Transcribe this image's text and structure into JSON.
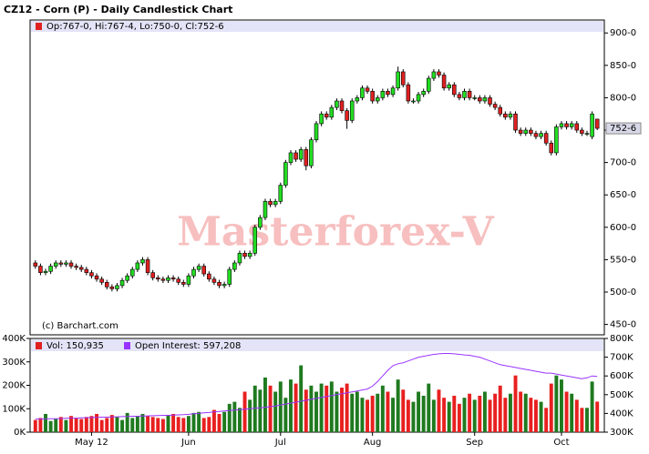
{
  "chart_data": {
    "type": "candlestick",
    "title": "CZ12 - Corn (P) - Daily Candlestick Chart",
    "ohlc_legend": "Op:767-0, Hi:767-4, Lo:750-0, Cl:752-6",
    "copyright": "(c) Barchart.com",
    "watermark": "Masterforex-V",
    "last_label": "752-6",
    "categories": [
      null,
      null,
      null,
      null,
      null,
      null,
      null,
      null,
      null,
      null,
      null,
      "May 12",
      null,
      null,
      null,
      null,
      null,
      null,
      null,
      null,
      null,
      null,
      null,
      null,
      null,
      null,
      null,
      null,
      null,
      null,
      "Jun",
      null,
      null,
      null,
      null,
      null,
      null,
      null,
      null,
      null,
      null,
      null,
      null,
      null,
      null,
      null,
      null,
      null,
      "Jul",
      null,
      null,
      null,
      null,
      null,
      null,
      null,
      null,
      null,
      null,
      null,
      null,
      null,
      null,
      null,
      null,
      null,
      "Aug",
      null,
      null,
      null,
      null,
      null,
      null,
      null,
      null,
      null,
      null,
      null,
      null,
      null,
      null,
      null,
      null,
      null,
      null,
      null,
      "Sep",
      null,
      null,
      null,
      null,
      null,
      null,
      null,
      null,
      null,
      null,
      null,
      null,
      null,
      null,
      null,
      null,
      "Oct",
      null,
      null,
      null,
      null,
      null,
      null,
      null
    ],
    "open": [
      545,
      540,
      530,
      532,
      540,
      545,
      543,
      545,
      540,
      538,
      535,
      530,
      525,
      520,
      515,
      508,
      505,
      510,
      518,
      525,
      535,
      545,
      550,
      530,
      522,
      520,
      518,
      522,
      520,
      515,
      512,
      525,
      535,
      540,
      528,
      520,
      515,
      510,
      512,
      535,
      545,
      560,
      555,
      560,
      600,
      615,
      640,
      635,
      640,
      665,
      700,
      715,
      705,
      720,
      695,
      735,
      760,
      775,
      770,
      785,
      795,
      780,
      765,
      795,
      800,
      815,
      810,
      795,
      800,
      810,
      805,
      815,
      840,
      820,
      795,
      795,
      805,
      810,
      830,
      840,
      835,
      815,
      820,
      805,
      800,
      810,
      800,
      800,
      795,
      800,
      790,
      785,
      775,
      770,
      775,
      750,
      745,
      750,
      745,
      740,
      745,
      730,
      715,
      755,
      760,
      755,
      760,
      750,
      745,
      740,
      767
    ],
    "high": [
      549,
      544,
      536,
      544,
      549,
      549,
      549,
      549,
      544,
      542,
      539,
      534,
      529,
      524,
      519,
      512,
      514,
      522,
      529,
      539,
      549,
      554,
      554,
      534,
      526,
      524,
      526,
      526,
      524,
      519,
      529,
      539,
      544,
      544,
      532,
      524,
      519,
      516,
      539,
      549,
      564,
      564,
      564,
      604,
      619,
      644,
      644,
      644,
      669,
      704,
      719,
      719,
      724,
      724,
      739,
      764,
      779,
      779,
      789,
      799,
      799,
      784,
      799,
      804,
      819,
      819,
      814,
      804,
      814,
      814,
      819,
      848,
      844,
      824,
      799,
      809,
      814,
      834,
      844,
      844,
      839,
      824,
      824,
      809,
      814,
      814,
      804,
      804,
      804,
      804,
      794,
      789,
      779,
      779,
      779,
      754,
      754,
      754,
      749,
      749,
      749,
      734,
      759,
      764,
      764,
      764,
      764,
      754,
      749,
      779,
      767.5
    ],
    "low": [
      536,
      526,
      526,
      528,
      536,
      539,
      539,
      536,
      534,
      531,
      526,
      521,
      516,
      511,
      504,
      501,
      501,
      506,
      514,
      521,
      531,
      541,
      526,
      518,
      516,
      514,
      514,
      516,
      511,
      508,
      508,
      521,
      531,
      524,
      516,
      511,
      506,
      506,
      508,
      531,
      541,
      551,
      551,
      556,
      596,
      611,
      631,
      631,
      636,
      661,
      696,
      701,
      701,
      688,
      691,
      731,
      756,
      766,
      766,
      781,
      776,
      752,
      761,
      791,
      796,
      806,
      791,
      791,
      796,
      801,
      801,
      811,
      816,
      791,
      791,
      791,
      801,
      806,
      826,
      831,
      811,
      811,
      801,
      796,
      796,
      796,
      796,
      791,
      791,
      786,
      781,
      771,
      766,
      766,
      746,
      741,
      741,
      741,
      736,
      736,
      726,
      711,
      711,
      751,
      751,
      751,
      746,
      741,
      741,
      736,
      750
    ],
    "close": [
      540,
      530,
      532,
      540,
      545,
      543,
      545,
      540,
      538,
      535,
      530,
      525,
      520,
      515,
      508,
      505,
      510,
      518,
      525,
      535,
      545,
      550,
      530,
      522,
      520,
      518,
      522,
      520,
      515,
      512,
      525,
      535,
      540,
      528,
      520,
      515,
      510,
      512,
      535,
      545,
      560,
      555,
      560,
      600,
      615,
      640,
      635,
      640,
      665,
      700,
      715,
      705,
      720,
      695,
      735,
      760,
      775,
      770,
      785,
      795,
      780,
      765,
      795,
      800,
      815,
      810,
      795,
      800,
      810,
      805,
      815,
      840,
      820,
      795,
      795,
      805,
      810,
      830,
      840,
      835,
      815,
      820,
      805,
      800,
      810,
      800,
      800,
      795,
      800,
      790,
      785,
      775,
      770,
      775,
      750,
      745,
      750,
      745,
      740,
      745,
      730,
      715,
      755,
      760,
      755,
      760,
      750,
      745,
      745,
      775,
      752.75
    ],
    "up_color": "#22dd22",
    "down_color": "#e02020",
    "ylim": [
      434,
      920
    ],
    "yticks": [
      {
        "value": 450,
        "label": "450-0"
      },
      {
        "value": 500,
        "label": "500-0"
      },
      {
        "value": 550,
        "label": "550-0"
      },
      {
        "value": 600,
        "label": "600-0"
      },
      {
        "value": 650,
        "label": "650-0"
      },
      {
        "value": 700,
        "label": "700-0"
      },
      {
        "value": 750,
        "label": "750-0"
      },
      {
        "value": 800,
        "label": "800-0"
      },
      {
        "value": 850,
        "label": "850-0"
      },
      {
        "value": 900,
        "label": "900-0"
      }
    ],
    "volume": {
      "legend": "Vol: 150,935",
      "values": [
        60000,
        70000,
        90000,
        55000,
        65000,
        75000,
        60000,
        80000,
        70000,
        65000,
        75000,
        80000,
        90000,
        60000,
        70000,
        85000,
        75000,
        60000,
        95000,
        70000,
        80000,
        90000,
        80000,
        75000,
        70000,
        65000,
        85000,
        90000,
        75000,
        70000,
        80000,
        95000,
        100000,
        70000,
        75000,
        110000,
        90000,
        100000,
        140000,
        150000,
        120000,
        200000,
        160000,
        230000,
        210000,
        270000,
        230000,
        200000,
        250000,
        170000,
        260000,
        240000,
        330000,
        210000,
        230000,
        200000,
        240000,
        230000,
        250000,
        200000,
        220000,
        240000,
        190000,
        200000,
        170000,
        160000,
        180000,
        190000,
        230000,
        200000,
        170000,
        260000,
        210000,
        160000,
        150000,
        200000,
        180000,
        240000,
        160000,
        210000,
        170000,
        150000,
        180000,
        140000,
        170000,
        190000,
        160000,
        180000,
        200000,
        160000,
        190000,
        230000,
        170000,
        190000,
        280000,
        200000,
        190000,
        170000,
        160000,
        150000,
        120000,
        240000,
        280000,
        260000,
        200000,
        190000,
        160000,
        120000,
        120000,
        250000,
        150935
      ],
      "up_color": "#1f7a1f",
      "down_color": "#e82020",
      "ylim": [
        0,
        400000
      ],
      "yticks": [
        {
          "value": 0,
          "label": "0K"
        },
        {
          "value": 100000,
          "label": "100K"
        },
        {
          "value": 200000,
          "label": "200K"
        },
        {
          "value": 300000,
          "label": "300K"
        },
        {
          "value": 400000,
          "label": "400K"
        }
      ]
    },
    "open_interest": {
      "legend": "Open Interest: 597,208",
      "axis": "y2",
      "color": "#9933ff",
      "values": [
        370000,
        370000,
        371000,
        372000,
        372000,
        373000,
        374000,
        375000,
        375000,
        376000,
        377000,
        378000,
        379000,
        380000,
        380000,
        381000,
        382000,
        383000,
        384000,
        385000,
        385000,
        386000,
        387000,
        388000,
        389000,
        390000,
        390000,
        391000,
        392000,
        393000,
        395000,
        398000,
        400000,
        403000,
        405000,
        408000,
        410000,
        413000,
        415000,
        418000,
        420000,
        423000,
        425000,
        428000,
        430000,
        433000,
        436000,
        440000,
        445000,
        450000,
        455000,
        460000,
        465000,
        470000,
        475000,
        480000,
        485000,
        490000,
        495000,
        500000,
        505000,
        510000,
        515000,
        520000,
        525000,
        530000,
        545000,
        570000,
        600000,
        630000,
        655000,
        665000,
        670000,
        680000,
        690000,
        700000,
        705000,
        710000,
        715000,
        718000,
        720000,
        720000,
        718000,
        715000,
        712000,
        710000,
        705000,
        700000,
        690000,
        680000,
        670000,
        660000,
        655000,
        650000,
        645000,
        640000,
        635000,
        630000,
        625000,
        620000,
        615000,
        615000,
        610000,
        605000,
        600000,
        595000,
        590000,
        585000,
        590000,
        600000,
        597208
      ],
      "y2lim": [
        300000,
        800000
      ],
      "y2ticks": [
        {
          "value": 300000,
          "label": "300K"
        },
        {
          "value": 400000,
          "label": "400K"
        },
        {
          "value": 500000,
          "label": "500K"
        },
        {
          "value": 600000,
          "label": "600K"
        },
        {
          "value": 700000,
          "label": "700K"
        },
        {
          "value": 800000,
          "label": "800K"
        }
      ]
    }
  }
}
